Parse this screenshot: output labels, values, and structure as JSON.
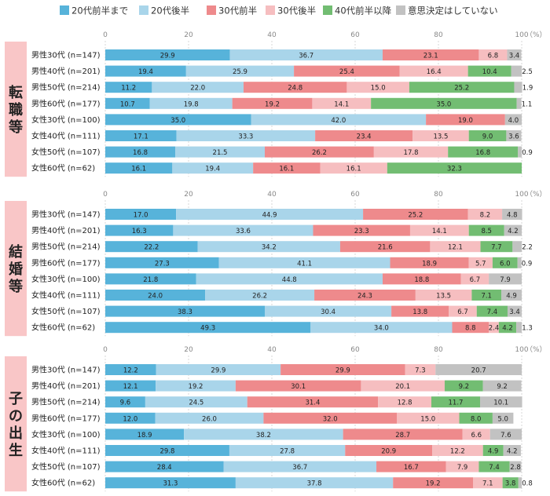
{
  "colors": {
    "s1": "#57b3da",
    "s2": "#a9d5ea",
    "s3": "#ee8a8c",
    "s4": "#f6bec0",
    "s5": "#72bd72",
    "s6": "#c2c2c2",
    "section_bg": "#f9c6c7",
    "grid": "#bdbdbd"
  },
  "chart_data": {
    "type": "bar",
    "stacked": true,
    "orientation": "horizontal",
    "legend": {
      "position": "top",
      "entries": [
        "20代前半まで",
        "20代後半",
        "30代前半",
        "30代後半",
        "40代前半以降",
        "意思決定はしていない"
      ]
    },
    "xlim": [
      0,
      100
    ],
    "x_ticks": [
      "0",
      "20",
      "40",
      "60",
      "80",
      "100"
    ],
    "x_unit": "（%）",
    "grid": true,
    "categories": [
      "男性30代 (n=147)",
      "男性40代 (n=201)",
      "男性50代 (n=214)",
      "男性60代 (n=177)",
      "女性30代 (n=100)",
      "女性40代 (n=111)",
      "女性50代 (n=107)",
      "女性60代 (n=62)"
    ],
    "panels": [
      {
        "label": "転職等",
        "rows": [
          [
            29.9,
            36.7,
            23.1,
            6.8,
            0,
            3.4
          ],
          [
            19.4,
            25.9,
            25.4,
            16.4,
            10.4,
            2.5
          ],
          [
            11.2,
            22.0,
            24.8,
            15.0,
            25.2,
            1.9
          ],
          [
            10.7,
            19.8,
            19.2,
            14.1,
            35.0,
            1.1
          ],
          [
            35.0,
            42.0,
            19.0,
            0,
            0,
            4.0
          ],
          [
            17.1,
            33.3,
            23.4,
            13.5,
            9.0,
            3.6
          ],
          [
            16.8,
            21.5,
            26.2,
            17.8,
            16.8,
            0.9
          ],
          [
            16.1,
            19.4,
            16.1,
            16.1,
            32.3,
            0
          ]
        ]
      },
      {
        "label": "結婚等",
        "rows": [
          [
            17.0,
            44.9,
            25.2,
            8.2,
            0,
            4.8
          ],
          [
            16.3,
            33.6,
            23.3,
            14.1,
            8.5,
            4.2
          ],
          [
            22.2,
            34.2,
            21.6,
            12.1,
            7.7,
            2.2
          ],
          [
            27.3,
            41.1,
            18.9,
            5.7,
            6.0,
            0.9
          ],
          [
            21.8,
            44.8,
            18.8,
            6.7,
            0,
            7.9
          ],
          [
            24.0,
            26.2,
            24.3,
            13.5,
            7.1,
            4.9
          ],
          [
            38.3,
            30.4,
            13.8,
            6.7,
            7.4,
            3.4
          ],
          [
            49.3,
            34.0,
            8.8,
            2.4,
            4.2,
            1.3
          ]
        ]
      },
      {
        "label": "子の出生",
        "rows": [
          [
            12.2,
            29.9,
            29.9,
            7.3,
            0,
            20.7
          ],
          [
            12.1,
            19.2,
            30.1,
            20.1,
            9.2,
            9.2
          ],
          [
            9.6,
            24.5,
            31.4,
            12.8,
            11.7,
            10.1
          ],
          [
            12.0,
            26.0,
            32.0,
            15.0,
            8.0,
            5.0
          ],
          [
            18.9,
            38.2,
            28.7,
            6.6,
            0,
            7.6
          ],
          [
            29.8,
            27.8,
            20.9,
            12.2,
            4.9,
            4.2
          ],
          [
            28.4,
            36.7,
            16.7,
            7.9,
            7.4,
            2.8
          ],
          [
            31.3,
            37.8,
            19.2,
            7.1,
            3.8,
            0.8
          ]
        ]
      }
    ]
  }
}
